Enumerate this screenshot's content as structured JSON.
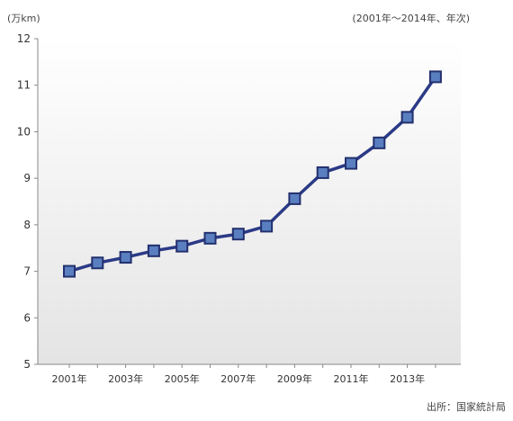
{
  "header": {
    "unit": "(万km)",
    "period": "(2001年〜2014年、年次)"
  },
  "footer": {
    "source": "出所：国家統計局"
  },
  "colors": {
    "line": "#2b3a86",
    "marker_fill": "#5a7fc0",
    "marker_stroke": "#23306e",
    "plot_bg_top": "#ffffff",
    "plot_bg_bottom": "#e4e4e4",
    "axis": "#888888"
  },
  "chart_data": {
    "type": "line",
    "x": [
      "2001年",
      "2002年",
      "2003年",
      "2004年",
      "2005年",
      "2006年",
      "2007年",
      "2008年",
      "2009年",
      "2010年",
      "2011年",
      "2012年",
      "2013年",
      "2014年"
    ],
    "tick_labels": [
      "2001年",
      "2003年",
      "2005年",
      "2007年",
      "2009年",
      "2011年",
      "2013年"
    ],
    "series": [
      {
        "values": [
          7.0,
          7.18,
          7.3,
          7.44,
          7.54,
          7.71,
          7.8,
          7.97,
          8.56,
          9.12,
          9.32,
          9.76,
          10.31,
          11.18
        ]
      }
    ],
    "ylim": [
      5,
      12
    ],
    "yticks": [
      5,
      6,
      7,
      8,
      9,
      10,
      11,
      12
    ],
    "grid": false,
    "legend": "none"
  }
}
